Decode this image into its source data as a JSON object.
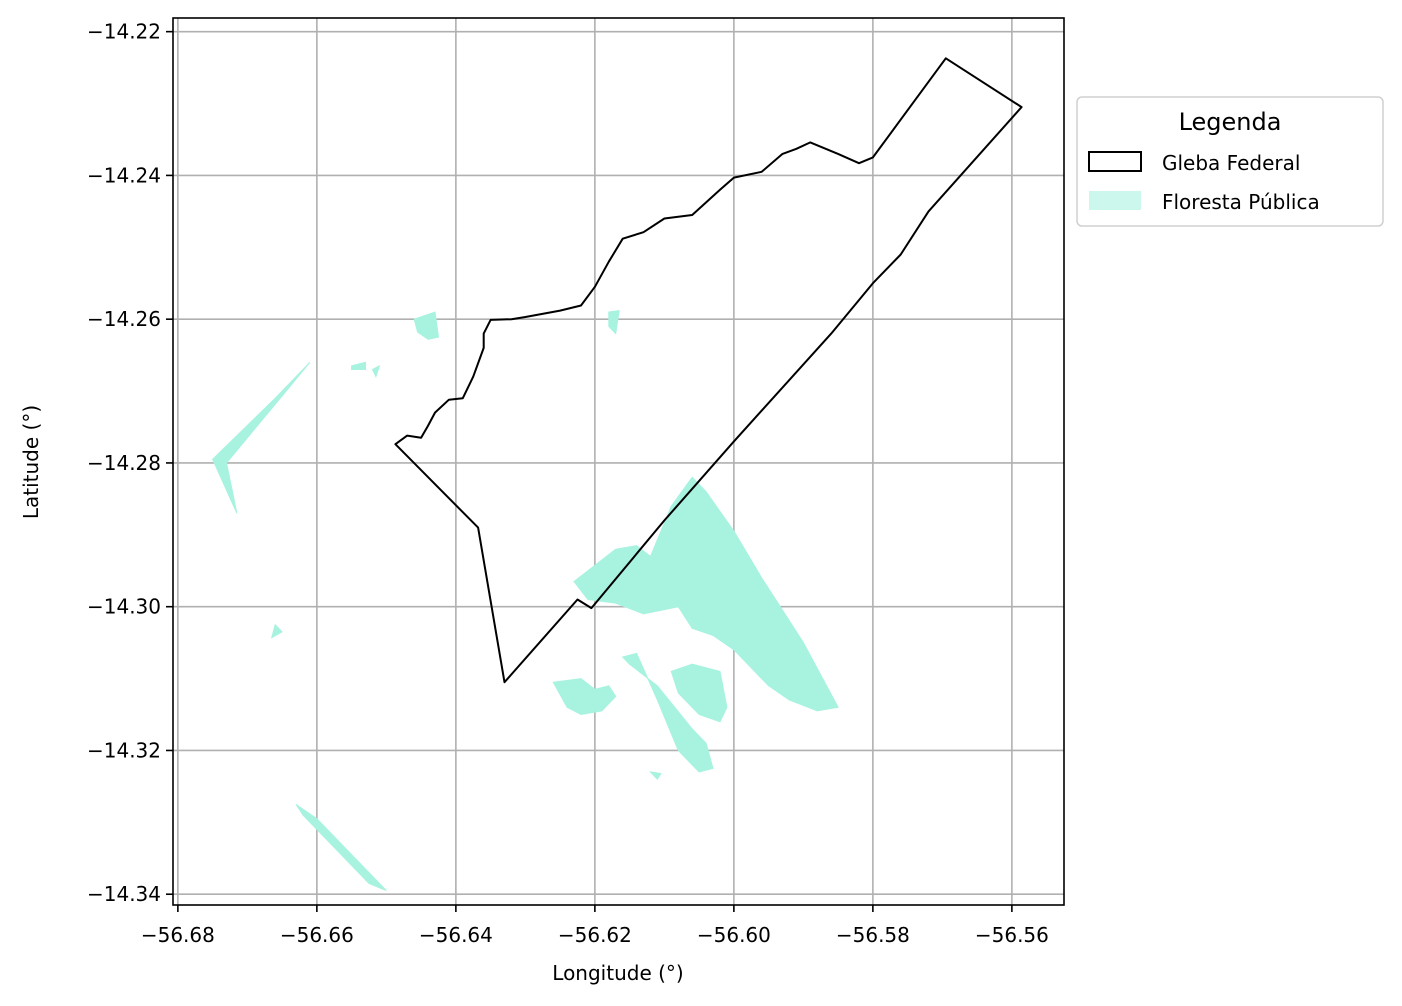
{
  "map": {
    "xlabel": "Longitude (°)",
    "ylabel": "Latitude (°)",
    "xlim": [
      -56.6807,
      -56.5525
    ],
    "ylim": [
      -14.3415,
      -14.2181
    ],
    "x_ticks": [
      -56.68,
      -56.66,
      -56.64,
      -56.62,
      -56.6,
      -56.58,
      -56.56
    ],
    "y_ticks": [
      -14.22,
      -14.24,
      -14.26,
      -14.28,
      -14.3,
      -14.32,
      -14.34
    ],
    "x_tick_labels": [
      "−56.68",
      "−56.66",
      "−56.64",
      "−56.62",
      "−56.60",
      "−56.58",
      "−56.56"
    ],
    "y_tick_labels": [
      "−14.22",
      "−14.24",
      "−14.26",
      "−14.28",
      "−14.30",
      "−14.32",
      "−14.34"
    ],
    "grid": true,
    "legend": {
      "title": "Legenda",
      "placement": "outside-right-top",
      "items": [
        {
          "label": "Gleba Federal",
          "kind": "outline",
          "edge_color": "#000000",
          "fill": "#ffffff"
        },
        {
          "label": "Floresta Pública",
          "kind": "fill",
          "color": "#a8f2e0"
        }
      ]
    },
    "colors": {
      "forest": "#a8f2e0",
      "gleba_edge": "#000000",
      "grid": "#b0b0b0"
    },
    "layers": {
      "gleba_federal": [
        [
          -56.6487,
          -14.2774
        ],
        [
          -56.647,
          -14.2762
        ],
        [
          -56.645,
          -14.2765
        ],
        [
          -56.644,
          -14.2748
        ],
        [
          -56.643,
          -14.273
        ],
        [
          -56.641,
          -14.2712
        ],
        [
          -56.639,
          -14.271
        ],
        [
          -56.6375,
          -14.268
        ],
        [
          -56.636,
          -14.264
        ],
        [
          -56.636,
          -14.262
        ],
        [
          -56.635,
          -14.2601
        ],
        [
          -56.632,
          -14.26
        ],
        [
          -56.63,
          -14.2597
        ],
        [
          -56.625,
          -14.2588
        ],
        [
          -56.622,
          -14.2581
        ],
        [
          -56.62,
          -14.2555
        ],
        [
          -56.618,
          -14.252
        ],
        [
          -56.616,
          -14.2488
        ],
        [
          -56.613,
          -14.2479
        ],
        [
          -56.61,
          -14.246
        ],
        [
          -56.606,
          -14.2455
        ],
        [
          -56.602,
          -14.242
        ],
        [
          -56.6,
          -14.2403
        ],
        [
          -56.596,
          -14.2395
        ],
        [
          -56.593,
          -14.237
        ],
        [
          -56.591,
          -14.2363
        ],
        [
          -56.589,
          -14.2354
        ],
        [
          -56.585,
          -14.237
        ],
        [
          -56.582,
          -14.2383
        ],
        [
          -56.58,
          -14.2375
        ],
        [
          -56.5695,
          -14.2237
        ],
        [
          -56.5586,
          -14.2305
        ],
        [
          -56.572,
          -14.245
        ],
        [
          -56.576,
          -14.251
        ],
        [
          -56.58,
          -14.255
        ],
        [
          -56.586,
          -14.262
        ],
        [
          -56.6,
          -14.277
        ],
        [
          -56.61,
          -14.288
        ],
        [
          -56.6205,
          -14.3002
        ],
        [
          -56.6225,
          -14.299
        ],
        [
          -56.633,
          -14.3105
        ],
        [
          -56.6368,
          -14.289
        ],
        [
          -56.6487,
          -14.2774
        ]
      ],
      "floresta_publica": [
        [
          [
            -56.675,
            -14.2795
          ],
          [
            -56.666,
            -14.271
          ],
          [
            -56.661,
            -14.266
          ],
          [
            -56.664,
            -14.2695
          ],
          [
            -56.673,
            -14.28
          ],
          [
            -56.6715,
            -14.287
          ],
          [
            -56.675,
            -14.2795
          ]
        ],
        [
          [
            -56.655,
            -14.2665
          ],
          [
            -56.653,
            -14.266
          ],
          [
            -56.653,
            -14.267
          ],
          [
            -56.655,
            -14.267
          ]
        ],
        [
          [
            -56.652,
            -14.267
          ],
          [
            -56.6515,
            -14.268
          ],
          [
            -56.651,
            -14.2665
          ]
        ],
        [
          [
            -56.646,
            -14.26
          ],
          [
            -56.643,
            -14.259
          ],
          [
            -56.6425,
            -14.2625
          ],
          [
            -56.644,
            -14.2628
          ],
          [
            -56.6455,
            -14.2618
          ],
          [
            -56.646,
            -14.26
          ]
        ],
        [
          [
            -56.618,
            -14.259
          ],
          [
            -56.6165,
            -14.2588
          ],
          [
            -56.617,
            -14.262
          ],
          [
            -56.618,
            -14.261
          ]
        ],
        [
          [
            -56.666,
            -14.3025
          ],
          [
            -56.665,
            -14.3035
          ],
          [
            -56.6665,
            -14.3043
          ]
        ],
        [
          [
            -56.663,
            -14.3275
          ],
          [
            -56.66,
            -14.3295
          ],
          [
            -56.65,
            -14.3395
          ],
          [
            -56.6525,
            -14.3385
          ],
          [
            -56.662,
            -14.329
          ],
          [
            -56.663,
            -14.3275
          ]
        ],
        [
          [
            -56.623,
            -14.2965
          ],
          [
            -56.619,
            -14.2935
          ],
          [
            -56.617,
            -14.292
          ],
          [
            -56.614,
            -14.2915
          ],
          [
            -56.612,
            -14.293
          ],
          [
            -56.609,
            -14.286
          ],
          [
            -56.606,
            -14.282
          ],
          [
            -56.604,
            -14.284
          ],
          [
            -56.6,
            -14.2895
          ],
          [
            -56.596,
            -14.296
          ],
          [
            -56.59,
            -14.305
          ],
          [
            -56.585,
            -14.314
          ],
          [
            -56.588,
            -14.3145
          ],
          [
            -56.592,
            -14.313
          ],
          [
            -56.595,
            -14.311
          ],
          [
            -56.6,
            -14.306
          ],
          [
            -56.603,
            -14.304
          ],
          [
            -56.606,
            -14.303
          ],
          [
            -56.608,
            -14.3
          ],
          [
            -56.613,
            -14.301
          ],
          [
            -56.617,
            -14.2995
          ],
          [
            -56.621,
            -14.299
          ],
          [
            -56.623,
            -14.2965
          ]
        ],
        [
          [
            -56.626,
            -14.3105
          ],
          [
            -56.622,
            -14.31
          ],
          [
            -56.62,
            -14.3115
          ],
          [
            -56.618,
            -14.311
          ],
          [
            -56.617,
            -14.3125
          ],
          [
            -56.619,
            -14.3145
          ],
          [
            -56.622,
            -14.315
          ],
          [
            -56.624,
            -14.314
          ],
          [
            -56.626,
            -14.3105
          ]
        ],
        [
          [
            -56.616,
            -14.307
          ],
          [
            -56.614,
            -14.3065
          ],
          [
            -56.611,
            -14.313
          ],
          [
            -56.608,
            -14.32
          ],
          [
            -56.605,
            -14.323
          ],
          [
            -56.603,
            -14.3225
          ],
          [
            -56.604,
            -14.319
          ],
          [
            -56.606,
            -14.317
          ],
          [
            -56.611,
            -14.311
          ],
          [
            -56.615,
            -14.308
          ],
          [
            -56.616,
            -14.307
          ]
        ],
        [
          [
            -56.609,
            -14.309
          ],
          [
            -56.606,
            -14.308
          ],
          [
            -56.602,
            -14.309
          ],
          [
            -56.601,
            -14.314
          ],
          [
            -56.602,
            -14.316
          ],
          [
            -56.605,
            -14.315
          ],
          [
            -56.608,
            -14.312
          ],
          [
            -56.609,
            -14.309
          ]
        ],
        [
          [
            -56.612,
            -14.323
          ],
          [
            -56.611,
            -14.324
          ],
          [
            -56.6105,
            -14.3232
          ]
        ]
      ]
    }
  }
}
